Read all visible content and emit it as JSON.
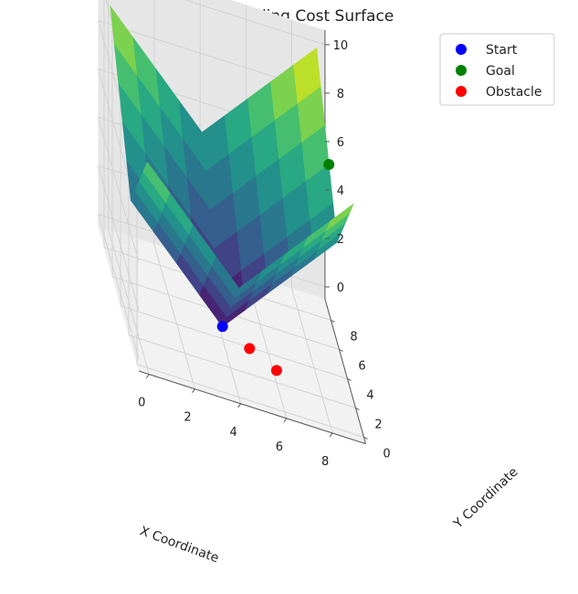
{
  "chart_data": {
    "type": "surface3d",
    "title": "3D Pathfinding Cost Surface",
    "xlabel": "X Coordinate",
    "ylabel": "Y Coordinate",
    "zlabel": "",
    "xlim": [
      0,
      9
    ],
    "ylim": [
      0,
      9
    ],
    "zlim": [
      0,
      10
    ],
    "x_ticks": [
      "0",
      "2",
      "4",
      "6",
      "8"
    ],
    "y_ticks": [
      "0",
      "2",
      "4",
      "6",
      "8"
    ],
    "z_ticks": [
      "0",
      "2",
      "4",
      "6",
      "8",
      "10"
    ],
    "colormap": "viridis",
    "grid": true,
    "legend_position": "top-right",
    "surface_note": "cost z = |x - 4| + |y - 4| sampled on a 10x10 grid (x, y = 0..9)",
    "points": [
      {
        "name": "Start",
        "x": 4,
        "y": 4,
        "z": 0,
        "color": "#0000ff"
      },
      {
        "name": "Goal",
        "x": 9,
        "y": 6,
        "z": 7,
        "color": "#008000"
      },
      {
        "name": "Obstacle",
        "x": 5,
        "y": 3,
        "z": 0,
        "color": "#ff0000"
      },
      {
        "name": "Obstacle",
        "x": 6,
        "y": 2,
        "z": 0,
        "color": "#ff0000"
      }
    ],
    "legend": [
      {
        "label": "Start",
        "color": "#0000ff"
      },
      {
        "label": "Goal",
        "color": "#008000"
      },
      {
        "label": "Obstacle",
        "color": "#ff0000"
      }
    ]
  }
}
